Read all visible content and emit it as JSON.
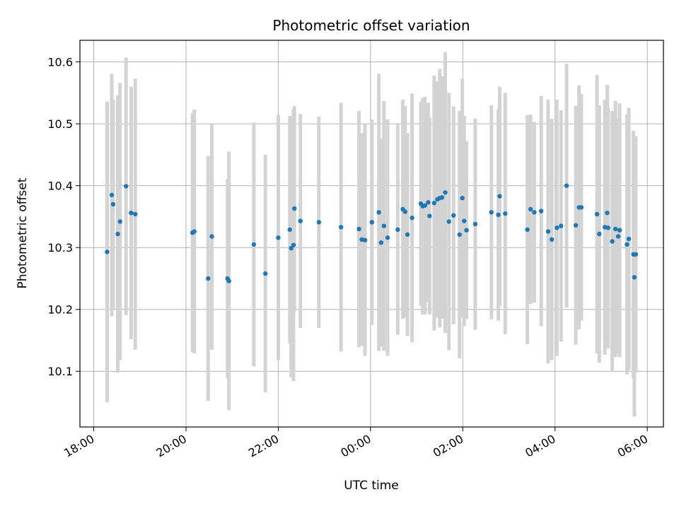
{
  "chart_data": {
    "type": "scatter",
    "title": "Photometric offset variation",
    "xlabel": "UTC time",
    "ylabel": "Photometric offset",
    "grid": true,
    "x_ticks": [
      "18:00",
      "20:00",
      "22:00",
      "00:00",
      "02:00",
      "04:00",
      "06:00"
    ],
    "x_tick_hours": [
      18,
      20,
      22,
      24,
      26,
      28,
      30
    ],
    "y_ticks": [
      "10.1",
      "10.2",
      "10.3",
      "10.4",
      "10.5",
      "10.6"
    ],
    "y_tick_values": [
      10.1,
      10.2,
      10.3,
      10.4,
      10.5,
      10.6
    ],
    "xlim_hours": [
      17.7,
      30.35
    ],
    "ylim": [
      10.01,
      10.635
    ],
    "colors": {
      "points": "#1f77b4",
      "errorbars": "#d3d3d3",
      "grid": "#b0b0b0"
    },
    "x_hours": [
      18.29,
      18.39,
      18.42,
      18.52,
      18.57,
      18.7,
      18.81,
      18.9,
      20.14,
      20.18,
      20.48,
      20.56,
      20.9,
      20.93,
      21.47,
      21.72,
      22.0,
      22.25,
      22.28,
      22.33,
      22.35,
      22.48,
      22.88,
      23.36,
      23.75,
      23.81,
      23.88,
      24.03,
      24.18,
      24.23,
      24.29,
      24.37,
      24.59,
      24.7,
      24.75,
      24.8,
      24.9,
      25.09,
      25.13,
      25.18,
      25.25,
      25.28,
      25.38,
      25.45,
      25.5,
      25.55,
      25.62,
      25.7,
      25.8,
      25.93,
      25.99,
      26.03,
      26.08,
      26.27,
      26.62,
      26.77,
      26.8,
      26.92,
      27.4,
      27.47,
      27.55,
      27.7,
      27.85,
      27.93,
      28.04,
      28.13,
      28.25,
      28.45,
      28.52,
      28.57,
      28.91,
      28.96,
      29.08,
      29.13,
      29.15,
      29.24,
      29.31,
      29.37,
      29.4,
      29.56,
      29.6,
      29.7,
      29.72,
      29.75
    ],
    "values": [
      10.293,
      10.385,
      10.37,
      10.322,
      10.342,
      10.399,
      10.356,
      10.354,
      10.324,
      10.326,
      10.25,
      10.318,
      10.25,
      10.246,
      10.305,
      10.258,
      10.316,
      10.329,
      10.299,
      10.304,
      10.363,
      10.343,
      10.341,
      10.333,
      10.33,
      10.313,
      10.312,
      10.341,
      10.357,
      10.308,
      10.335,
      10.316,
      10.329,
      10.362,
      10.358,
      10.321,
      10.348,
      10.371,
      10.367,
      10.368,
      10.373,
      10.351,
      10.372,
      10.378,
      10.38,
      10.381,
      10.389,
      10.342,
      10.352,
      10.321,
      10.38,
      10.343,
      10.328,
      10.338,
      10.357,
      10.353,
      10.383,
      10.355,
      10.329,
      10.362,
      10.357,
      10.359,
      10.326,
      10.313,
      10.332,
      10.335,
      10.4,
      10.336,
      10.365,
      10.365,
      10.354,
      10.322,
      10.333,
      10.356,
      10.332,
      10.31,
      10.33,
      10.318,
      10.328,
      10.305,
      10.314,
      10.289,
      10.252,
      10.289
    ],
    "errors": [
      0.243,
      0.196,
      0.169,
      0.224,
      0.224,
      0.208,
      0.204,
      0.219,
      0.193,
      0.197,
      0.198,
      0.183,
      0.161,
      0.209,
      0.197,
      0.192,
      0.198,
      0.184,
      0.209,
      0.22,
      0.166,
      0.173,
      0.171,
      0.201,
      0.191,
      0.172,
      0.187,
      0.166,
      0.224,
      0.168,
      0.202,
      0.191,
      0.17,
      0.177,
      0.171,
      0.164,
      0.201,
      0.165,
      0.175,
      0.176,
      0.161,
      0.159,
      0.206,
      0.191,
      0.209,
      0.196,
      0.227,
      0.208,
      0.176,
      0.2,
      0.193,
      0.17,
      0.144,
      0.171,
      0.173,
      0.171,
      0.177,
      0.195,
      0.185,
      0.153,
      0.146,
      0.186,
      0.213,
      0.195,
      0.207,
      0.187,
      0.197,
      0.193,
      0.197,
      0.183,
      0.225,
      0.208,
      0.206,
      0.207,
      0.195,
      0.211,
      0.207,
      0.19,
      0.205,
      0.21,
      0.212,
      0.2,
      0.225,
      0.191
    ]
  }
}
